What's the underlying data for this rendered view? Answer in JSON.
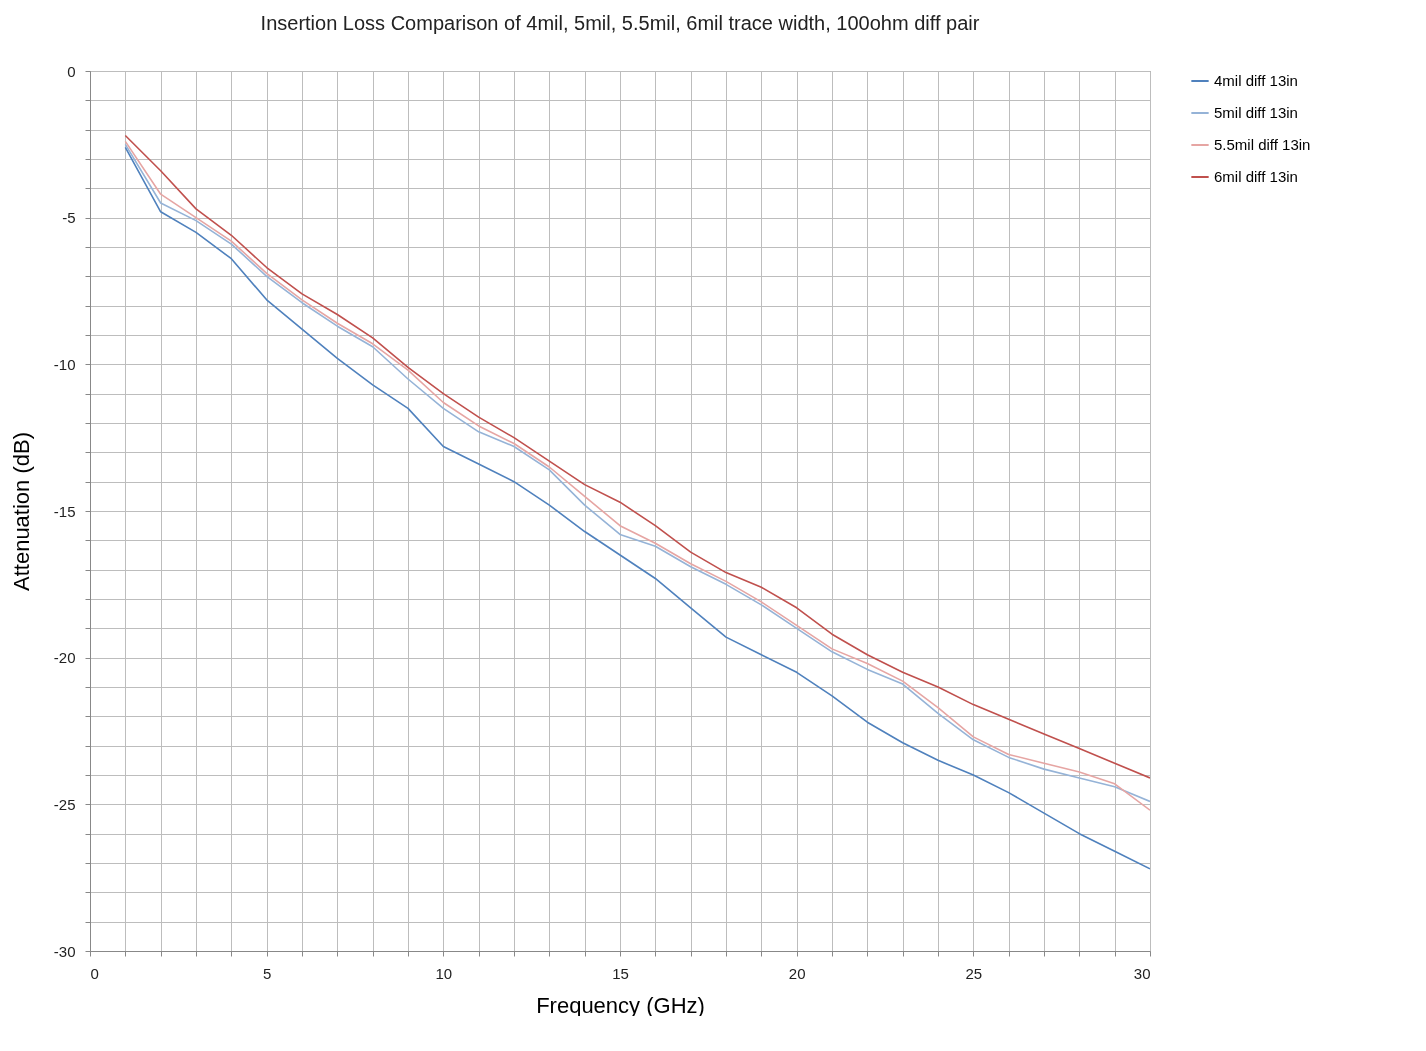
{
  "chart_data": {
    "type": "line",
    "title": "Insertion Loss Comparison of 4mil, 5mil, 5.5mil, 6mil trace width, 100ohm diff pair",
    "xlabel": "Frequency (GHz)",
    "ylabel": "Attenuation (dB)",
    "x": [
      1,
      2,
      3,
      4,
      5,
      6,
      7,
      8,
      9,
      10,
      11,
      12,
      13,
      14,
      15,
      16,
      17,
      18,
      19,
      20,
      21,
      22,
      23,
      24,
      25,
      26,
      27,
      28,
      29,
      30
    ],
    "series": [
      {
        "name": "4mil diff 13in",
        "color": "#4f81bd",
        "values": [
          -2.6,
          -4.8,
          -5.5,
          -6.4,
          -7.8,
          -8.8,
          -9.8,
          -10.7,
          -11.5,
          -12.8,
          -13.4,
          -14.0,
          -14.8,
          -15.7,
          -16.5,
          -17.3,
          -18.3,
          -19.3,
          -19.9,
          -20.5,
          -21.3,
          -22.2,
          -22.9,
          -23.5,
          -24.0,
          -24.6,
          -25.3,
          -26.0,
          -26.6,
          -27.2
        ]
      },
      {
        "name": "5mil diff 13in",
        "color": "#95b3d7",
        "values": [
          -2.5,
          -4.5,
          -5.1,
          -5.9,
          -7.0,
          -7.9,
          -8.7,
          -9.4,
          -10.5,
          -11.5,
          -12.3,
          -12.8,
          -13.6,
          -14.8,
          -15.8,
          -16.2,
          -16.9,
          -17.5,
          -18.2,
          -19.0,
          -19.8,
          -20.4,
          -20.9,
          -21.9,
          -22.8,
          -23.4,
          -23.8,
          -24.1,
          -24.4,
          -24.9
        ]
      },
      {
        "name": "5.5mil diff 13in",
        "color": "#e6a5a3",
        "values": [
          -2.4,
          -4.2,
          -5.0,
          -5.8,
          -6.9,
          -7.8,
          -8.6,
          -9.3,
          -10.2,
          -11.3,
          -12.1,
          -12.7,
          -13.5,
          -14.5,
          -15.5,
          -16.1,
          -16.8,
          -17.4,
          -18.1,
          -18.9,
          -19.7,
          -20.2,
          -20.8,
          -21.7,
          -22.7,
          -23.3,
          -23.6,
          -23.9,
          -24.3,
          -25.2
        ]
      },
      {
        "name": "6mil diff 13in",
        "color": "#c0504d",
        "values": [
          -2.2,
          -3.4,
          -4.7,
          -5.6,
          -6.7,
          -7.6,
          -8.3,
          -9.1,
          -10.1,
          -11.0,
          -11.8,
          -12.5,
          -13.3,
          -14.1,
          -14.7,
          -15.5,
          -16.4,
          -17.1,
          -17.6,
          -18.3,
          -19.2,
          -19.9,
          -20.5,
          -21.0,
          -21.6,
          -22.1,
          -22.6,
          -23.1,
          -23.6,
          -24.1
        ]
      }
    ],
    "xlim": [
      0,
      30
    ],
    "ylim": [
      -30,
      0
    ],
    "xticks": [
      0,
      {
        "value": 1,
        "label": null
      },
      {
        "value": 2,
        "label": null
      },
      {
        "value": 3,
        "label": null
      },
      {
        "value": 4,
        "label": null
      },
      5,
      {
        "value": 6,
        "label": null
      },
      {
        "value": 7,
        "label": null
      },
      {
        "value": 8,
        "label": null
      },
      {
        "value": 9,
        "label": null
      },
      10,
      {
        "value": 11,
        "label": null
      },
      {
        "value": 12,
        "label": null
      },
      {
        "value": 13,
        "label": null
      },
      {
        "value": 14,
        "label": null
      },
      15,
      {
        "value": 16,
        "label": null
      },
      {
        "value": 17,
        "label": null
      },
      {
        "value": 18,
        "label": null
      },
      {
        "value": 19,
        "label": null
      },
      20,
      {
        "value": 21,
        "label": null
      },
      {
        "value": 22,
        "label": null
      },
      {
        "value": 23,
        "label": null
      },
      {
        "value": 24,
        "label": null
      },
      25,
      {
        "value": 26,
        "label": null
      },
      {
        "value": 27,
        "label": null
      },
      {
        "value": 28,
        "label": null
      },
      {
        "value": 29,
        "label": null
      },
      30
    ],
    "yticks": [
      -30,
      {
        "value": -29,
        "label": null
      },
      {
        "value": -28,
        "label": null
      },
      {
        "value": -27,
        "label": null
      },
      {
        "value": -26,
        "label": null
      },
      -25,
      {
        "value": -24,
        "label": null
      },
      {
        "value": -23,
        "label": null
      },
      {
        "value": -22,
        "label": null
      },
      {
        "value": -21,
        "label": null
      },
      -20,
      {
        "value": -19,
        "label": null
      },
      {
        "value": -18,
        "label": null
      },
      {
        "value": -17,
        "label": null
      },
      {
        "value": -16,
        "label": null
      },
      -15,
      {
        "value": -14,
        "label": null
      },
      {
        "value": -13,
        "label": null
      },
      {
        "value": -12,
        "label": null
      },
      {
        "value": -11,
        "label": null
      },
      -10,
      {
        "value": -9,
        "label": null
      },
      {
        "value": -8,
        "label": null
      },
      {
        "value": -7,
        "label": null
      },
      {
        "value": -6,
        "label": null
      },
      -5,
      {
        "value": -4,
        "label": null
      },
      {
        "value": -3,
        "label": null
      },
      {
        "value": -2,
        "label": null
      },
      {
        "value": -1,
        "label": null
      },
      0
    ],
    "grid": true,
    "legend": "top right",
    "marker": "none",
    "line_style": "solid"
  }
}
